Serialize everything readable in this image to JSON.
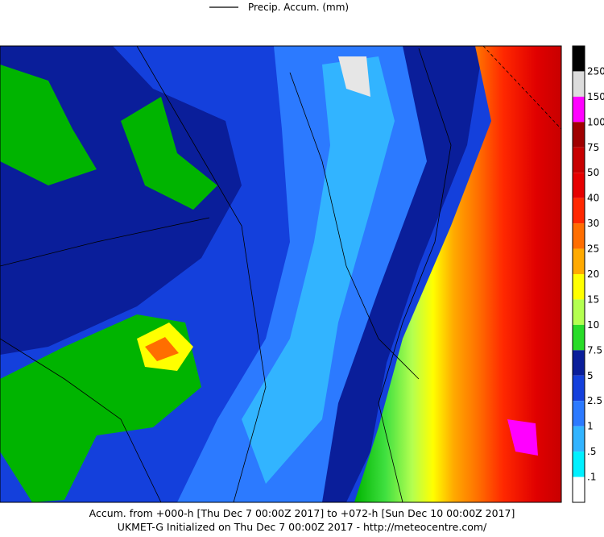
{
  "legend": {
    "label": "Precip. Accum. (mm)"
  },
  "colorbar": {
    "labels": [
      "250",
      "150",
      "100",
      "75",
      "50",
      "40",
      "30",
      "25",
      "20",
      "15",
      "10",
      "7.5",
      "5",
      "2.5",
      "1",
      ".5",
      ".1"
    ]
  },
  "footer": {
    "line1": "Accum. from +000-h [Thu Dec 7 00:00Z 2017] to +072-h [Sun Dec 10 00:00Z 2017]",
    "line2": "UKMET-G Initialized on Thu Dec 7 00:00Z 2017 - http://meteocentre.com/"
  }
}
